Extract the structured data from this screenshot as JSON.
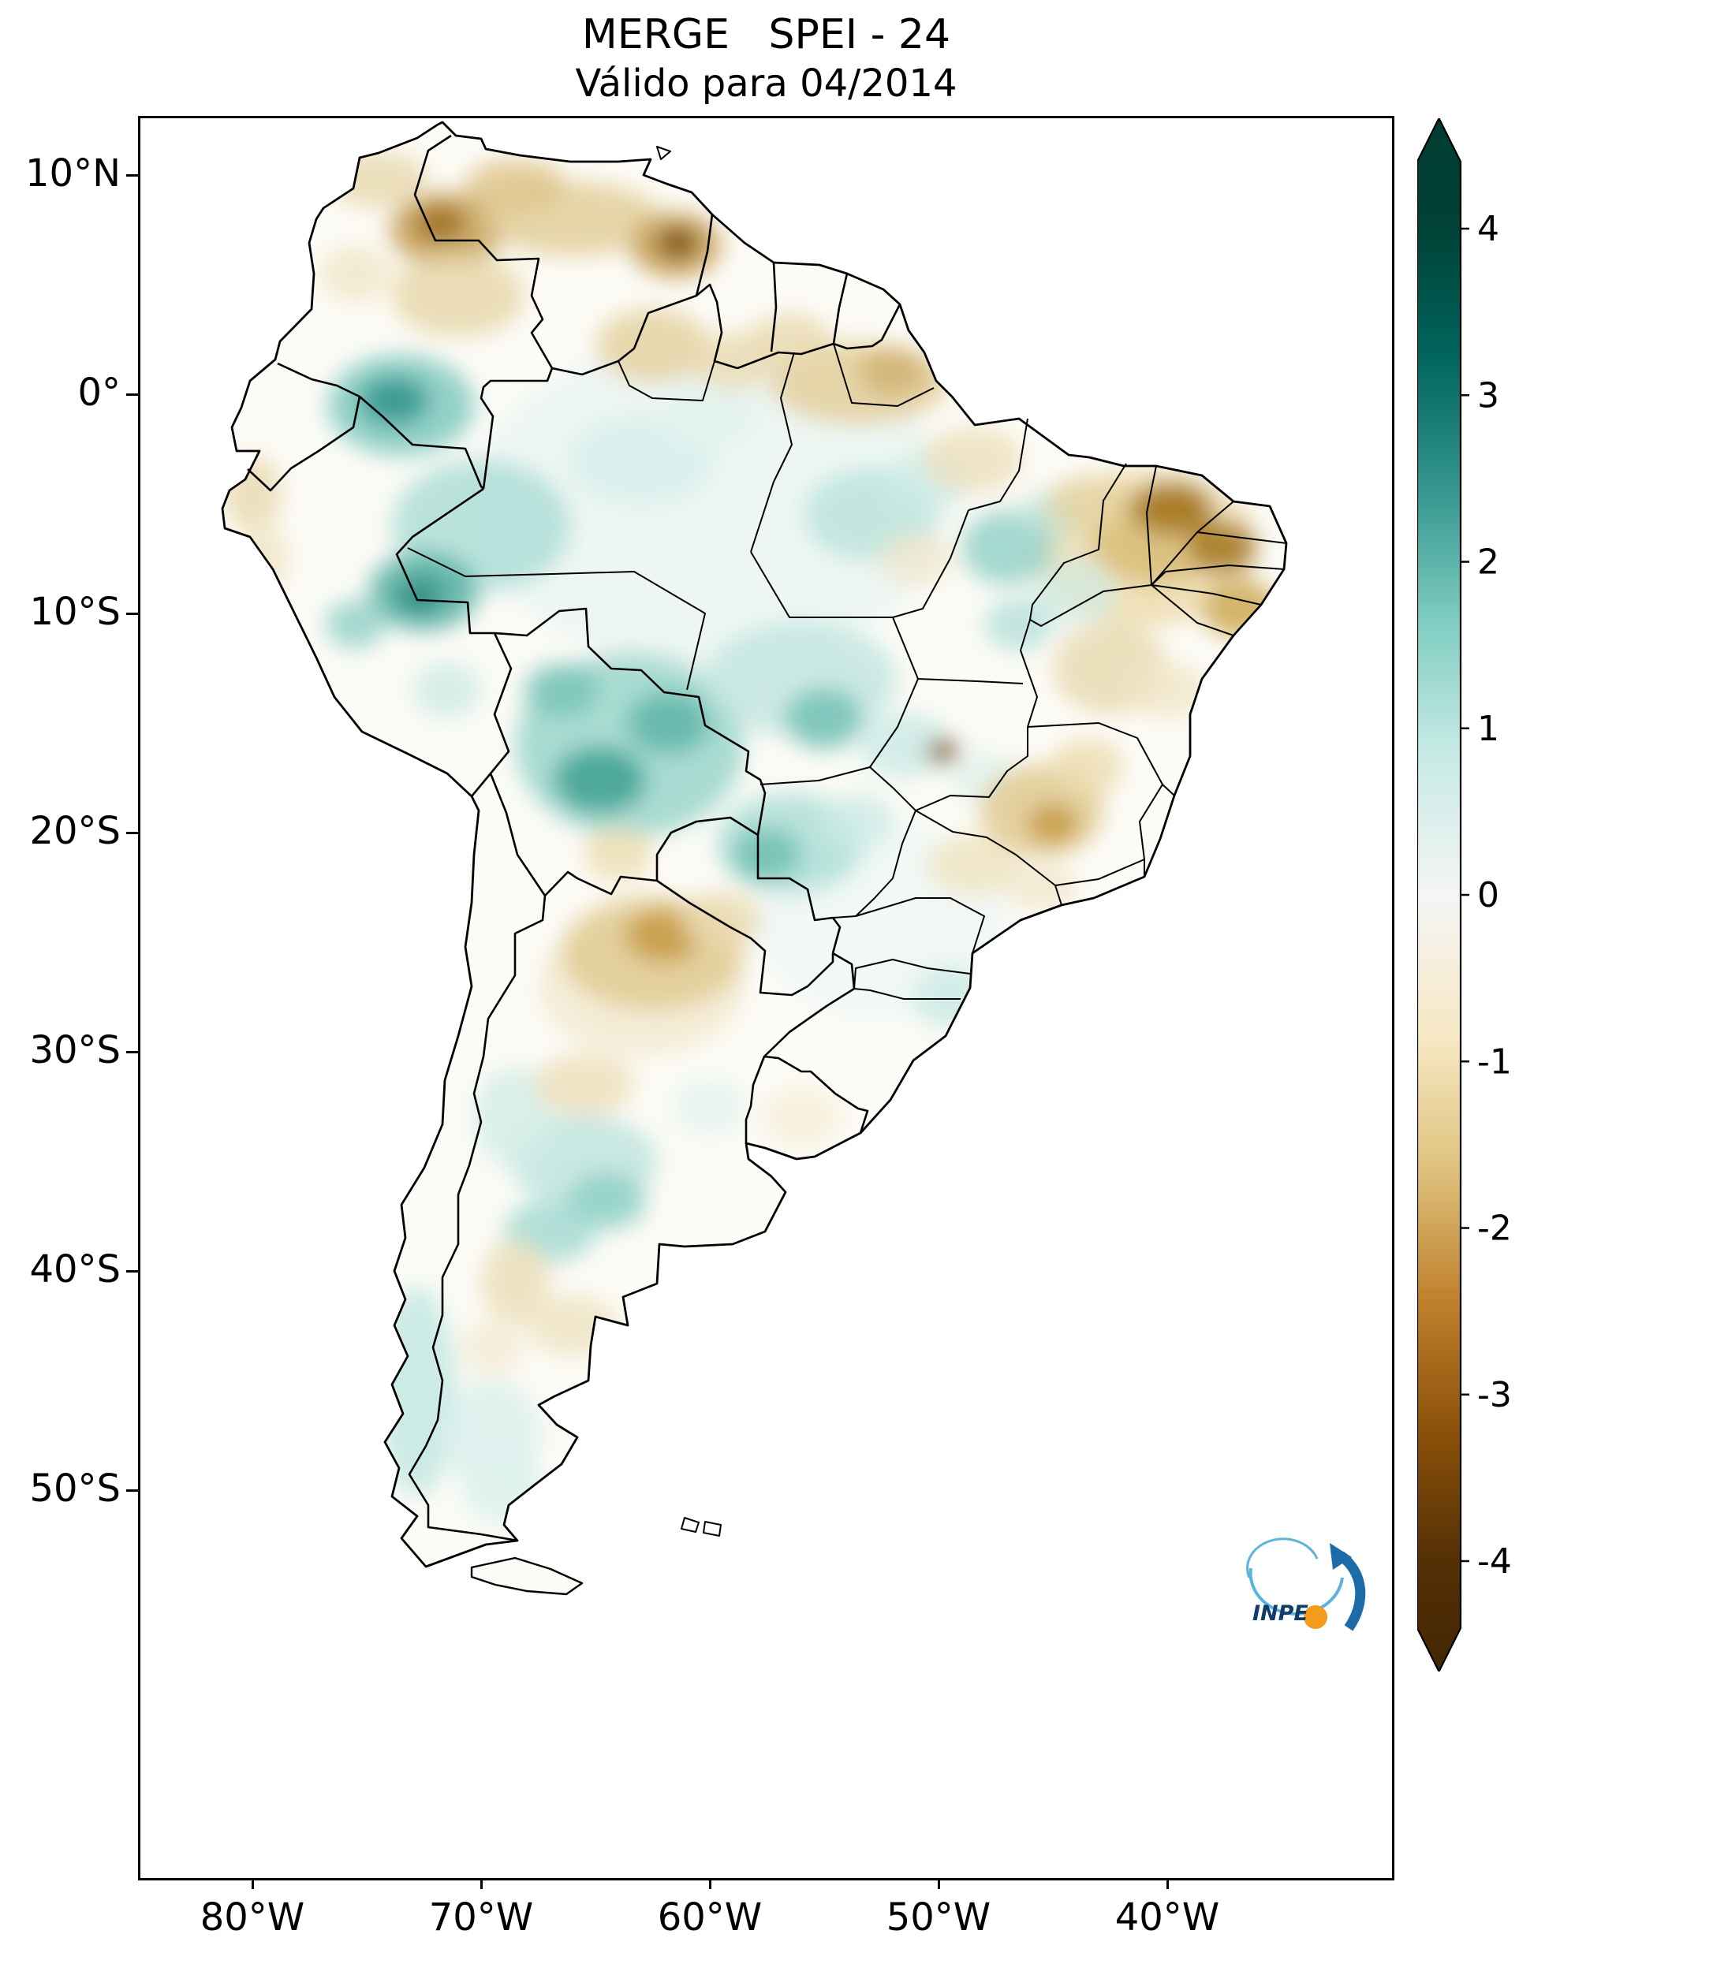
{
  "title": {
    "line1": "MERGE   SPEI - 24",
    "line2": "Válido para 04/2014"
  },
  "axes": {
    "x_ticks": [
      {
        "label": "80°W",
        "lon": -80
      },
      {
        "label": "70°W",
        "lon": -70
      },
      {
        "label": "60°W",
        "lon": -60
      },
      {
        "label": "50°W",
        "lon": -50
      },
      {
        "label": "40°W",
        "lon": -40
      }
    ],
    "y_ticks": [
      {
        "label": "10°N",
        "lat": 10
      },
      {
        "label": "0°",
        "lat": 0
      },
      {
        "label": "10°S",
        "lat": -10
      },
      {
        "label": "20°S",
        "lat": -20
      },
      {
        "label": "30°S",
        "lat": -30
      },
      {
        "label": "40°S",
        "lat": -40
      },
      {
        "label": "50°S",
        "lat": -50
      }
    ]
  },
  "colorbar": {
    "ticks": [
      {
        "label": "4",
        "value": 4
      },
      {
        "label": "3",
        "value": 3
      },
      {
        "label": "2",
        "value": 2
      },
      {
        "label": "1",
        "value": 1
      },
      {
        "label": "0",
        "value": 0
      },
      {
        "label": "-1",
        "value": -1
      },
      {
        "label": "-2",
        "value": -2
      },
      {
        "label": "-3",
        "value": -3
      },
      {
        "label": "-4",
        "value": -4
      }
    ],
    "gradient": [
      [
        0.0,
        "#003c30"
      ],
      [
        0.071,
        "#004237"
      ],
      [
        0.155,
        "#01665e"
      ],
      [
        0.24,
        "#35978f"
      ],
      [
        0.325,
        "#80cdc1"
      ],
      [
        0.409,
        "#c7eae5"
      ],
      [
        0.5,
        "#f5f5f5"
      ],
      [
        0.593,
        "#f6e8c3"
      ],
      [
        0.676,
        "#dfc27d"
      ],
      [
        0.76,
        "#bf812d"
      ],
      [
        0.845,
        "#8c510a"
      ],
      [
        0.929,
        "#543005"
      ],
      [
        1.0,
        "#432604"
      ]
    ]
  },
  "logo": {
    "text": "INPE"
  },
  "spei_field": {
    "index": "SPEI-24",
    "valid_for": "04/2014",
    "blobs": [
      [
        -60,
        -5,
        10.5,
        7.5,
        "#edf6f3",
        1
      ],
      [
        -52.5,
        -24,
        5.5,
        4.5,
        "#f1f8f5",
        1
      ],
      [
        -41,
        -7,
        5.0,
        3.6,
        "#eedfb4",
        0.9
      ],
      [
        -63,
        -27,
        4.5,
        3.2,
        "#f3ead1",
        0.85
      ],
      [
        -73.5,
        -0.5,
        3.2,
        2.3,
        "#7fc9bf",
        0.85
      ],
      [
        -73.8,
        -0.3,
        1.5,
        1.1,
        "#35978f",
        0.9
      ],
      [
        -70,
        -6,
        3.9,
        3.0,
        "#a9dcd4",
        0.8
      ],
      [
        -72.5,
        -9,
        2.4,
        1.8,
        "#59b3a7",
        0.85
      ],
      [
        -72.7,
        -9.2,
        1.1,
        0.8,
        "#2e8c80",
        0.9
      ],
      [
        -75.5,
        -10.5,
        1.3,
        1.1,
        "#8ed0c6",
        0.8
      ],
      [
        -71.5,
        -13.5,
        1.5,
        1.3,
        "#cdebe6",
        0.8
      ],
      [
        -63.5,
        -16,
        5.0,
        4.2,
        "#8ed0c6",
        0.75
      ],
      [
        -64.8,
        -17.6,
        2.0,
        1.5,
        "#45a396",
        0.9
      ],
      [
        -61.8,
        -15,
        1.8,
        1.4,
        "#5fb5a9",
        0.85
      ],
      [
        -66.5,
        -13.5,
        1.6,
        1.2,
        "#74c2b6",
        0.8
      ],
      [
        -56,
        -13,
        4.2,
        2.6,
        "#bfe5de",
        0.8
      ],
      [
        -55,
        -14.8,
        1.7,
        1.4,
        "#74c2b6",
        0.85
      ],
      [
        -53,
        -5.5,
        2.9,
        2.1,
        "#b8e2db",
        0.8
      ],
      [
        -50.5,
        -4,
        1.8,
        1.4,
        "#cdebe6",
        0.8
      ],
      [
        -47,
        -7,
        2.0,
        1.7,
        "#8ed0c6",
        0.8
      ],
      [
        -45,
        -5.5,
        1.4,
        1.1,
        "#b8e2db",
        0.75
      ],
      [
        -44,
        -9,
        1.8,
        1.5,
        "#cdebe6",
        0.7
      ],
      [
        -46.5,
        -10.5,
        1.5,
        1.2,
        "#a9dcd4",
        0.7
      ],
      [
        -56.5,
        -20.5,
        3.2,
        2.3,
        "#a9dcd4",
        0.8
      ],
      [
        -57.5,
        -21,
        1.5,
        1.2,
        "#6fbfb2",
        0.85
      ],
      [
        -53.5,
        -19.5,
        1.6,
        1.3,
        "#cdebe6",
        0.8
      ],
      [
        -51.5,
        -16,
        2.0,
        1.5,
        "#cdebe6",
        0.85
      ],
      [
        -48,
        -17.5,
        1.5,
        1.2,
        "#def1ec",
        0.8
      ],
      [
        -63,
        -3,
        3.2,
        2.1,
        "#d8efeb",
        0.9
      ],
      [
        -60,
        -1,
        2.2,
        1.5,
        "#e2f3ef",
        0.9
      ],
      [
        -65.5,
        -35,
        3.2,
        2.1,
        "#c3e6e0",
        0.9
      ],
      [
        -64.5,
        -36.8,
        1.7,
        1.3,
        "#8ed0c6",
        0.85
      ],
      [
        -67,
        -38.2,
        2.0,
        1.4,
        "#9fd8cf",
        0.8
      ],
      [
        -68.5,
        -33,
        1.8,
        2.3,
        "#d4ede8",
        0.85
      ],
      [
        -60,
        -32.5,
        1.6,
        1.3,
        "#e4f3ef",
        0.85
      ],
      [
        -72.8,
        -45.5,
        1.7,
        4.8,
        "#c7e9e3",
        0.9
      ],
      [
        -69.5,
        -47.5,
        2.1,
        2.6,
        "#ddf1ed",
        0.9
      ],
      [
        -69,
        -50,
        1.8,
        1.6,
        "#ddf1ed",
        0.85
      ],
      [
        -49.5,
        -27.5,
        1.7,
        1.4,
        "#cdebe6",
        0.9
      ],
      [
        -71.5,
        7.5,
        2.5,
        1.7,
        "#c9a45c",
        0.9
      ],
      [
        -71.8,
        7.8,
        1.1,
        0.8,
        "#9c6d1f",
        0.9
      ],
      [
        -66,
        8,
        3.9,
        1.7,
        "#e3cf9b",
        0.85
      ],
      [
        -68.5,
        9.5,
        2.2,
        1.2,
        "#dec489",
        0.85
      ],
      [
        -61.5,
        6.8,
        2.0,
        1.5,
        "#c9a45c",
        0.9
      ],
      [
        -61.4,
        6.9,
        0.9,
        0.7,
        "#7a4c0a",
        0.95
      ],
      [
        -74.5,
        9.8,
        2.2,
        1.3,
        "#e8d8ac",
        0.8
      ],
      [
        -71,
        4.5,
        2.9,
        1.9,
        "#e8d8ac",
        0.85
      ],
      [
        -75.5,
        5.5,
        1.6,
        1.3,
        "#f0e6c8",
        0.8
      ],
      [
        -62.5,
        2.2,
        2.5,
        1.7,
        "#e3cf9b",
        0.8
      ],
      [
        -59,
        1.5,
        1.8,
        1.3,
        "#ead9ae",
        0.8
      ],
      [
        -53.5,
        0.5,
        3.9,
        1.9,
        "#e3cf9b",
        0.85
      ],
      [
        -52,
        1,
        1.5,
        1.1,
        "#d1b171",
        0.85
      ],
      [
        -56.5,
        2.5,
        1.8,
        1.2,
        "#e8d8ac",
        0.8
      ],
      [
        -48.5,
        -3,
        2.2,
        1.5,
        "#ecdfba",
        0.8
      ],
      [
        -51,
        -7.5,
        1.6,
        1.3,
        "#f0e6c8",
        0.7
      ],
      [
        -40.5,
        -6.5,
        2.9,
        2.2,
        "#d9bd78",
        0.85
      ],
      [
        -39.8,
        -5.2,
        1.8,
        1.2,
        "#a4771c",
        0.9
      ],
      [
        -37.6,
        -7,
        1.5,
        1.2,
        "#a4771c",
        0.85
      ],
      [
        -36.8,
        -9.8,
        1.7,
        1.3,
        "#cfa952",
        0.85
      ],
      [
        -43.5,
        -5,
        1.8,
        1.3,
        "#e6d4a4",
        0.8
      ],
      [
        -42.5,
        -12.5,
        2.5,
        2.1,
        "#eadbb3",
        0.85
      ],
      [
        -40,
        -13.5,
        1.7,
        1.3,
        "#f0e6c8",
        0.8
      ],
      [
        -45.5,
        -19,
        2.7,
        2.1,
        "#e0c98f",
        0.85
      ],
      [
        -45,
        -19.6,
        1.1,
        0.9,
        "#c79b45",
        0.9
      ],
      [
        -43.5,
        -17,
        1.6,
        1.3,
        "#ecdcae",
        0.8
      ],
      [
        -49.8,
        -16.3,
        0.7,
        0.55,
        "#8a5c10",
        0.95
      ],
      [
        -48.5,
        -21.5,
        2.0,
        1.4,
        "#f0e4c4",
        0.9
      ],
      [
        -45.5,
        -22.5,
        1.6,
        1.1,
        "#f2e8cd",
        0.85
      ],
      [
        -62.5,
        -25.5,
        4.0,
        2.6,
        "#e0c98f",
        0.8
      ],
      [
        -62,
        -24.7,
        1.7,
        1.2,
        "#c79b45",
        0.9
      ],
      [
        -59.5,
        -24,
        1.8,
        1.3,
        "#ead9ae",
        0.8
      ],
      [
        -64,
        -21,
        1.5,
        1.2,
        "#ecdcae",
        0.8
      ],
      [
        -65.5,
        -31.5,
        2.2,
        1.4,
        "#eee1bf",
        0.9
      ],
      [
        -68.5,
        -40.5,
        1.5,
        1.9,
        "#ece0bd",
        0.9
      ],
      [
        -66,
        -42.5,
        2.0,
        1.4,
        "#f0e6c8",
        0.9
      ],
      [
        -69.5,
        -43.5,
        1.4,
        1.2,
        "#f3ebd5",
        0.85
      ],
      [
        -80,
        -4.5,
        1.3,
        1.7,
        "#eadbb3",
        0.85
      ],
      [
        -79.5,
        -7.5,
        1.1,
        1.6,
        "#f0e6c8",
        0.85
      ],
      [
        -56,
        -33,
        1.8,
        1.4,
        "#f6efdc",
        0.9
      ]
    ]
  }
}
